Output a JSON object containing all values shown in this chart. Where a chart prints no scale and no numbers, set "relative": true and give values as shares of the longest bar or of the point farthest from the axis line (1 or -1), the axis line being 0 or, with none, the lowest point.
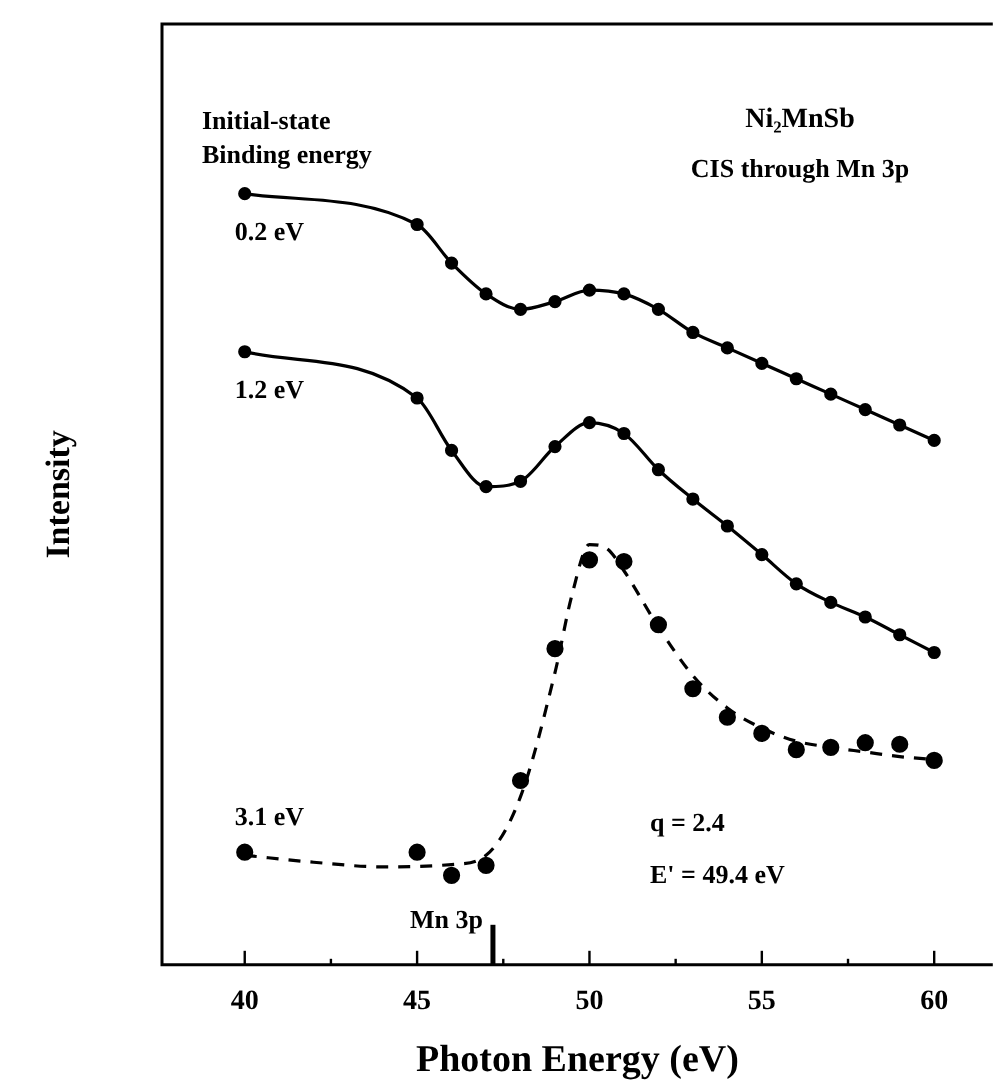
{
  "chart_data": {
    "type": "line",
    "title": "Ni₂MnSb",
    "subtitle": "CIS through Mn 3p",
    "legend_title": "Initial-state Binding energy",
    "xlabel": "Photon Energy (eV)",
    "ylabel": "Intensity",
    "relative": true,
    "grid": false,
    "legend": false,
    "tick_labels": "x",
    "marker": "circle",
    "line_style": "solid",
    "xlim": [
      37.6,
      61.7
    ],
    "xticks": [
      40,
      {
        "value": 42.5,
        "label": null
      },
      45,
      {
        "value": 47.5,
        "label": null
      },
      50,
      {
        "value": 52.5,
        "label": null
      },
      55,
      {
        "value": 57.5,
        "label": null
      },
      60
    ],
    "annotations": [
      "q = 2.4",
      "E' = 49.4 eV"
    ],
    "ref_lines": [
      {
        "axis": "x",
        "value": 47.2,
        "label": "Mn 3p"
      }
    ],
    "series": [
      {
        "name": "0.2 eV",
        "color": "#000000",
        "x": [
          40,
          45,
          46,
          47,
          48,
          49,
          50,
          51,
          52,
          53,
          54,
          55,
          56,
          57,
          58,
          59,
          60
        ],
        "values": [
          1.0,
          0.96,
          0.91,
          0.87,
          0.85,
          0.86,
          0.875,
          0.87,
          0.85,
          0.82,
          0.8,
          0.78,
          0.76,
          0.74,
          0.72,
          0.7,
          0.68
        ]
      },
      {
        "name": "1.2 eV",
        "color": "#000000",
        "x": [
          40,
          45,
          46,
          47,
          48,
          49,
          50,
          51,
          52,
          53,
          54,
          55,
          56,
          57,
          58,
          59,
          60
        ],
        "values": [
          0.795,
          0.735,
          0.667,
          0.62,
          0.627,
          0.672,
          0.703,
          0.689,
          0.642,
          0.604,
          0.569,
          0.532,
          0.494,
          0.47,
          0.451,
          0.428,
          0.405
        ]
      },
      {
        "name": "3.1 eV",
        "type": "scatter",
        "color": "#000000",
        "x": [
          40,
          45,
          46,
          47,
          48,
          49,
          50,
          51,
          52,
          53,
          54,
          55,
          56,
          57,
          58,
          59,
          60
        ],
        "values": [
          0.146,
          0.146,
          0.116,
          0.129,
          0.239,
          0.41,
          0.525,
          0.523,
          0.441,
          0.358,
          0.321,
          0.3,
          0.279,
          0.282,
          0.288,
          0.286,
          0.265
        ]
      },
      {
        "color": "#000000",
        "marker": "none",
        "line_style": "dashed",
        "x": [
          40,
          42,
          44,
          46,
          47,
          48,
          49,
          49.5,
          50,
          50.5,
          51,
          52,
          53,
          54,
          55,
          56,
          57,
          58,
          59,
          60
        ],
        "values": [
          0.142,
          0.133,
          0.127,
          0.13,
          0.142,
          0.218,
          0.379,
          0.481,
          0.545,
          0.54,
          0.511,
          0.438,
          0.375,
          0.333,
          0.307,
          0.29,
          0.282,
          0.276,
          0.27,
          0.266
        ]
      }
    ]
  }
}
